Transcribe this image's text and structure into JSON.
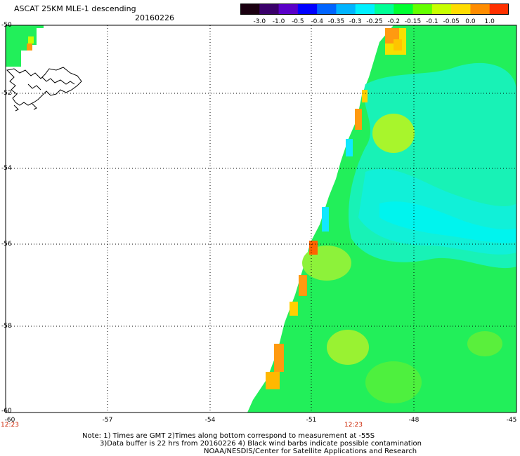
{
  "header": {
    "title": "ASCAT 25KM MLE-1 descending",
    "date": "20160226"
  },
  "colorbar": {
    "labels": [
      "-3.0",
      "-1.0",
      "-0.5",
      "-0.4",
      "-0.35",
      "-0.3",
      "-0.25",
      "-0.2",
      "-0.15",
      "-0.1",
      "-0.05",
      "0.0",
      "1.0"
    ],
    "colors": [
      "#1a0010",
      "#3a006a",
      "#5a00c8",
      "#0000ff",
      "#0064ff",
      "#00b4ff",
      "#00f0ff",
      "#00ff96",
      "#00ff32",
      "#64ff00",
      "#c8ff00",
      "#ffdc00",
      "#ff8c00",
      "#ff3000"
    ]
  },
  "axes": {
    "lat_labels": [
      "-50",
      "-52",
      "-54",
      "-56",
      "-58",
      "-60"
    ],
    "lon_labels": [
      "-60",
      "-57",
      "-54",
      "-51",
      "-48",
      "-45"
    ],
    "time_labels": [
      "12:23",
      "12:23"
    ]
  },
  "notes": [
    "Note: 1) Times are GMT 2)Times along bottom correspond to measurement at -55S",
    "3)Data buffer is 22 hrs from 20160226 4) Black wind barbs indicate possible contamination",
    "NOAA/NESDIS/Center for Satellite Applications and Research"
  ]
}
